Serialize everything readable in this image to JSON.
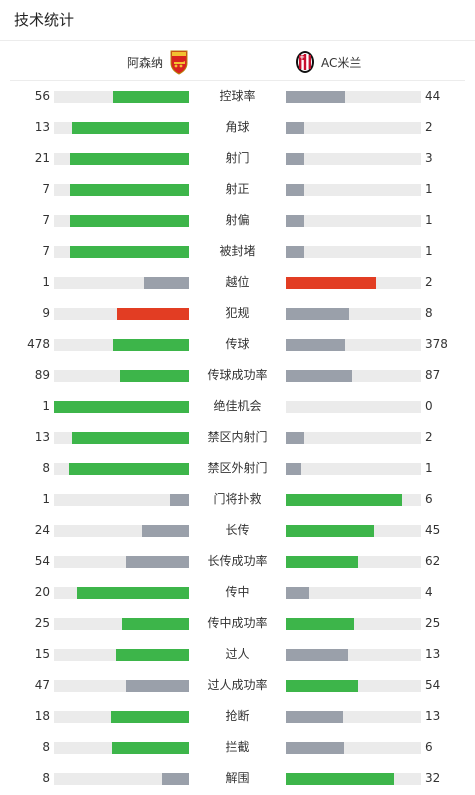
{
  "page_title": "技术统计",
  "teams": {
    "home": {
      "name": "阿森纳",
      "crest": "arsenal-crest-icon"
    },
    "away": {
      "name": "AC米兰",
      "crest": "ac-milan-crest-icon"
    }
  },
  "colors": {
    "better": "#3db54a",
    "worse": "#9aa0aa",
    "highlight": "#e23d23",
    "track": "#ebebeb"
  },
  "stats": [
    {
      "label": "控球率",
      "home": "56",
      "away": "44",
      "home_pct": 0.56,
      "away_pct": 0.44,
      "home_state": "better",
      "away_state": "worse"
    },
    {
      "label": "角球",
      "home": "13",
      "away": "2",
      "home_pct": 0.87,
      "away_pct": 0.13,
      "home_state": "better",
      "away_state": "worse"
    },
    {
      "label": "射门",
      "home": "21",
      "away": "3",
      "home_pct": 0.88,
      "away_pct": 0.13,
      "home_state": "better",
      "away_state": "worse"
    },
    {
      "label": "射正",
      "home": "7",
      "away": "1",
      "home_pct": 0.88,
      "away_pct": 0.13,
      "home_state": "better",
      "away_state": "worse"
    },
    {
      "label": "射偏",
      "home": "7",
      "away": "1",
      "home_pct": 0.88,
      "away_pct": 0.13,
      "home_state": "better",
      "away_state": "worse"
    },
    {
      "label": "被封堵",
      "home": "7",
      "away": "1",
      "home_pct": 0.88,
      "away_pct": 0.13,
      "home_state": "better",
      "away_state": "worse"
    },
    {
      "label": "越位",
      "home": "1",
      "away": "2",
      "home_pct": 0.33,
      "away_pct": 0.67,
      "home_state": "worse",
      "away_state": "highlight"
    },
    {
      "label": "犯规",
      "home": "9",
      "away": "8",
      "home_pct": 0.53,
      "away_pct": 0.47,
      "home_state": "highlight",
      "away_state": "worse"
    },
    {
      "label": "传球",
      "home": "478",
      "away": "378",
      "home_pct": 0.56,
      "away_pct": 0.44,
      "home_state": "better",
      "away_state": "worse"
    },
    {
      "label": "传球成功率",
      "home": "89",
      "away": "87",
      "home_pct": 0.51,
      "away_pct": 0.49,
      "home_state": "better",
      "away_state": "worse"
    },
    {
      "label": "绝佳机会",
      "home": "1",
      "away": "0",
      "home_pct": 1.0,
      "away_pct": 0.0,
      "home_state": "better",
      "away_state": "worse"
    },
    {
      "label": "禁区内射门",
      "home": "13",
      "away": "2",
      "home_pct": 0.87,
      "away_pct": 0.13,
      "home_state": "better",
      "away_state": "worse"
    },
    {
      "label": "禁区外射门",
      "home": "8",
      "away": "1",
      "home_pct": 0.89,
      "away_pct": 0.11,
      "home_state": "better",
      "away_state": "worse"
    },
    {
      "label": "门将扑救",
      "home": "1",
      "away": "6",
      "home_pct": 0.14,
      "away_pct": 0.86,
      "home_state": "worse",
      "away_state": "better"
    },
    {
      "label": "长传",
      "home": "24",
      "away": "45",
      "home_pct": 0.35,
      "away_pct": 0.65,
      "home_state": "worse",
      "away_state": "better"
    },
    {
      "label": "长传成功率",
      "home": "54",
      "away": "62",
      "home_pct": 0.47,
      "away_pct": 0.53,
      "home_state": "worse",
      "away_state": "better"
    },
    {
      "label": "传中",
      "home": "20",
      "away": "4",
      "home_pct": 0.83,
      "away_pct": 0.17,
      "home_state": "better",
      "away_state": "worse"
    },
    {
      "label": "传中成功率",
      "home": "25",
      "away": "25",
      "home_pct": 0.5,
      "away_pct": 0.5,
      "home_state": "better",
      "away_state": "better"
    },
    {
      "label": "过人",
      "home": "15",
      "away": "13",
      "home_pct": 0.54,
      "away_pct": 0.46,
      "home_state": "better",
      "away_state": "worse"
    },
    {
      "label": "过人成功率",
      "home": "47",
      "away": "54",
      "home_pct": 0.47,
      "away_pct": 0.53,
      "home_state": "worse",
      "away_state": "better"
    },
    {
      "label": "抢断",
      "home": "18",
      "away": "13",
      "home_pct": 0.58,
      "away_pct": 0.42,
      "home_state": "better",
      "away_state": "worse"
    },
    {
      "label": "拦截",
      "home": "8",
      "away": "6",
      "home_pct": 0.57,
      "away_pct": 0.43,
      "home_state": "better",
      "away_state": "worse"
    },
    {
      "label": "解围",
      "home": "8",
      "away": "32",
      "home_pct": 0.2,
      "away_pct": 0.8,
      "home_state": "worse",
      "away_state": "better"
    }
  ]
}
